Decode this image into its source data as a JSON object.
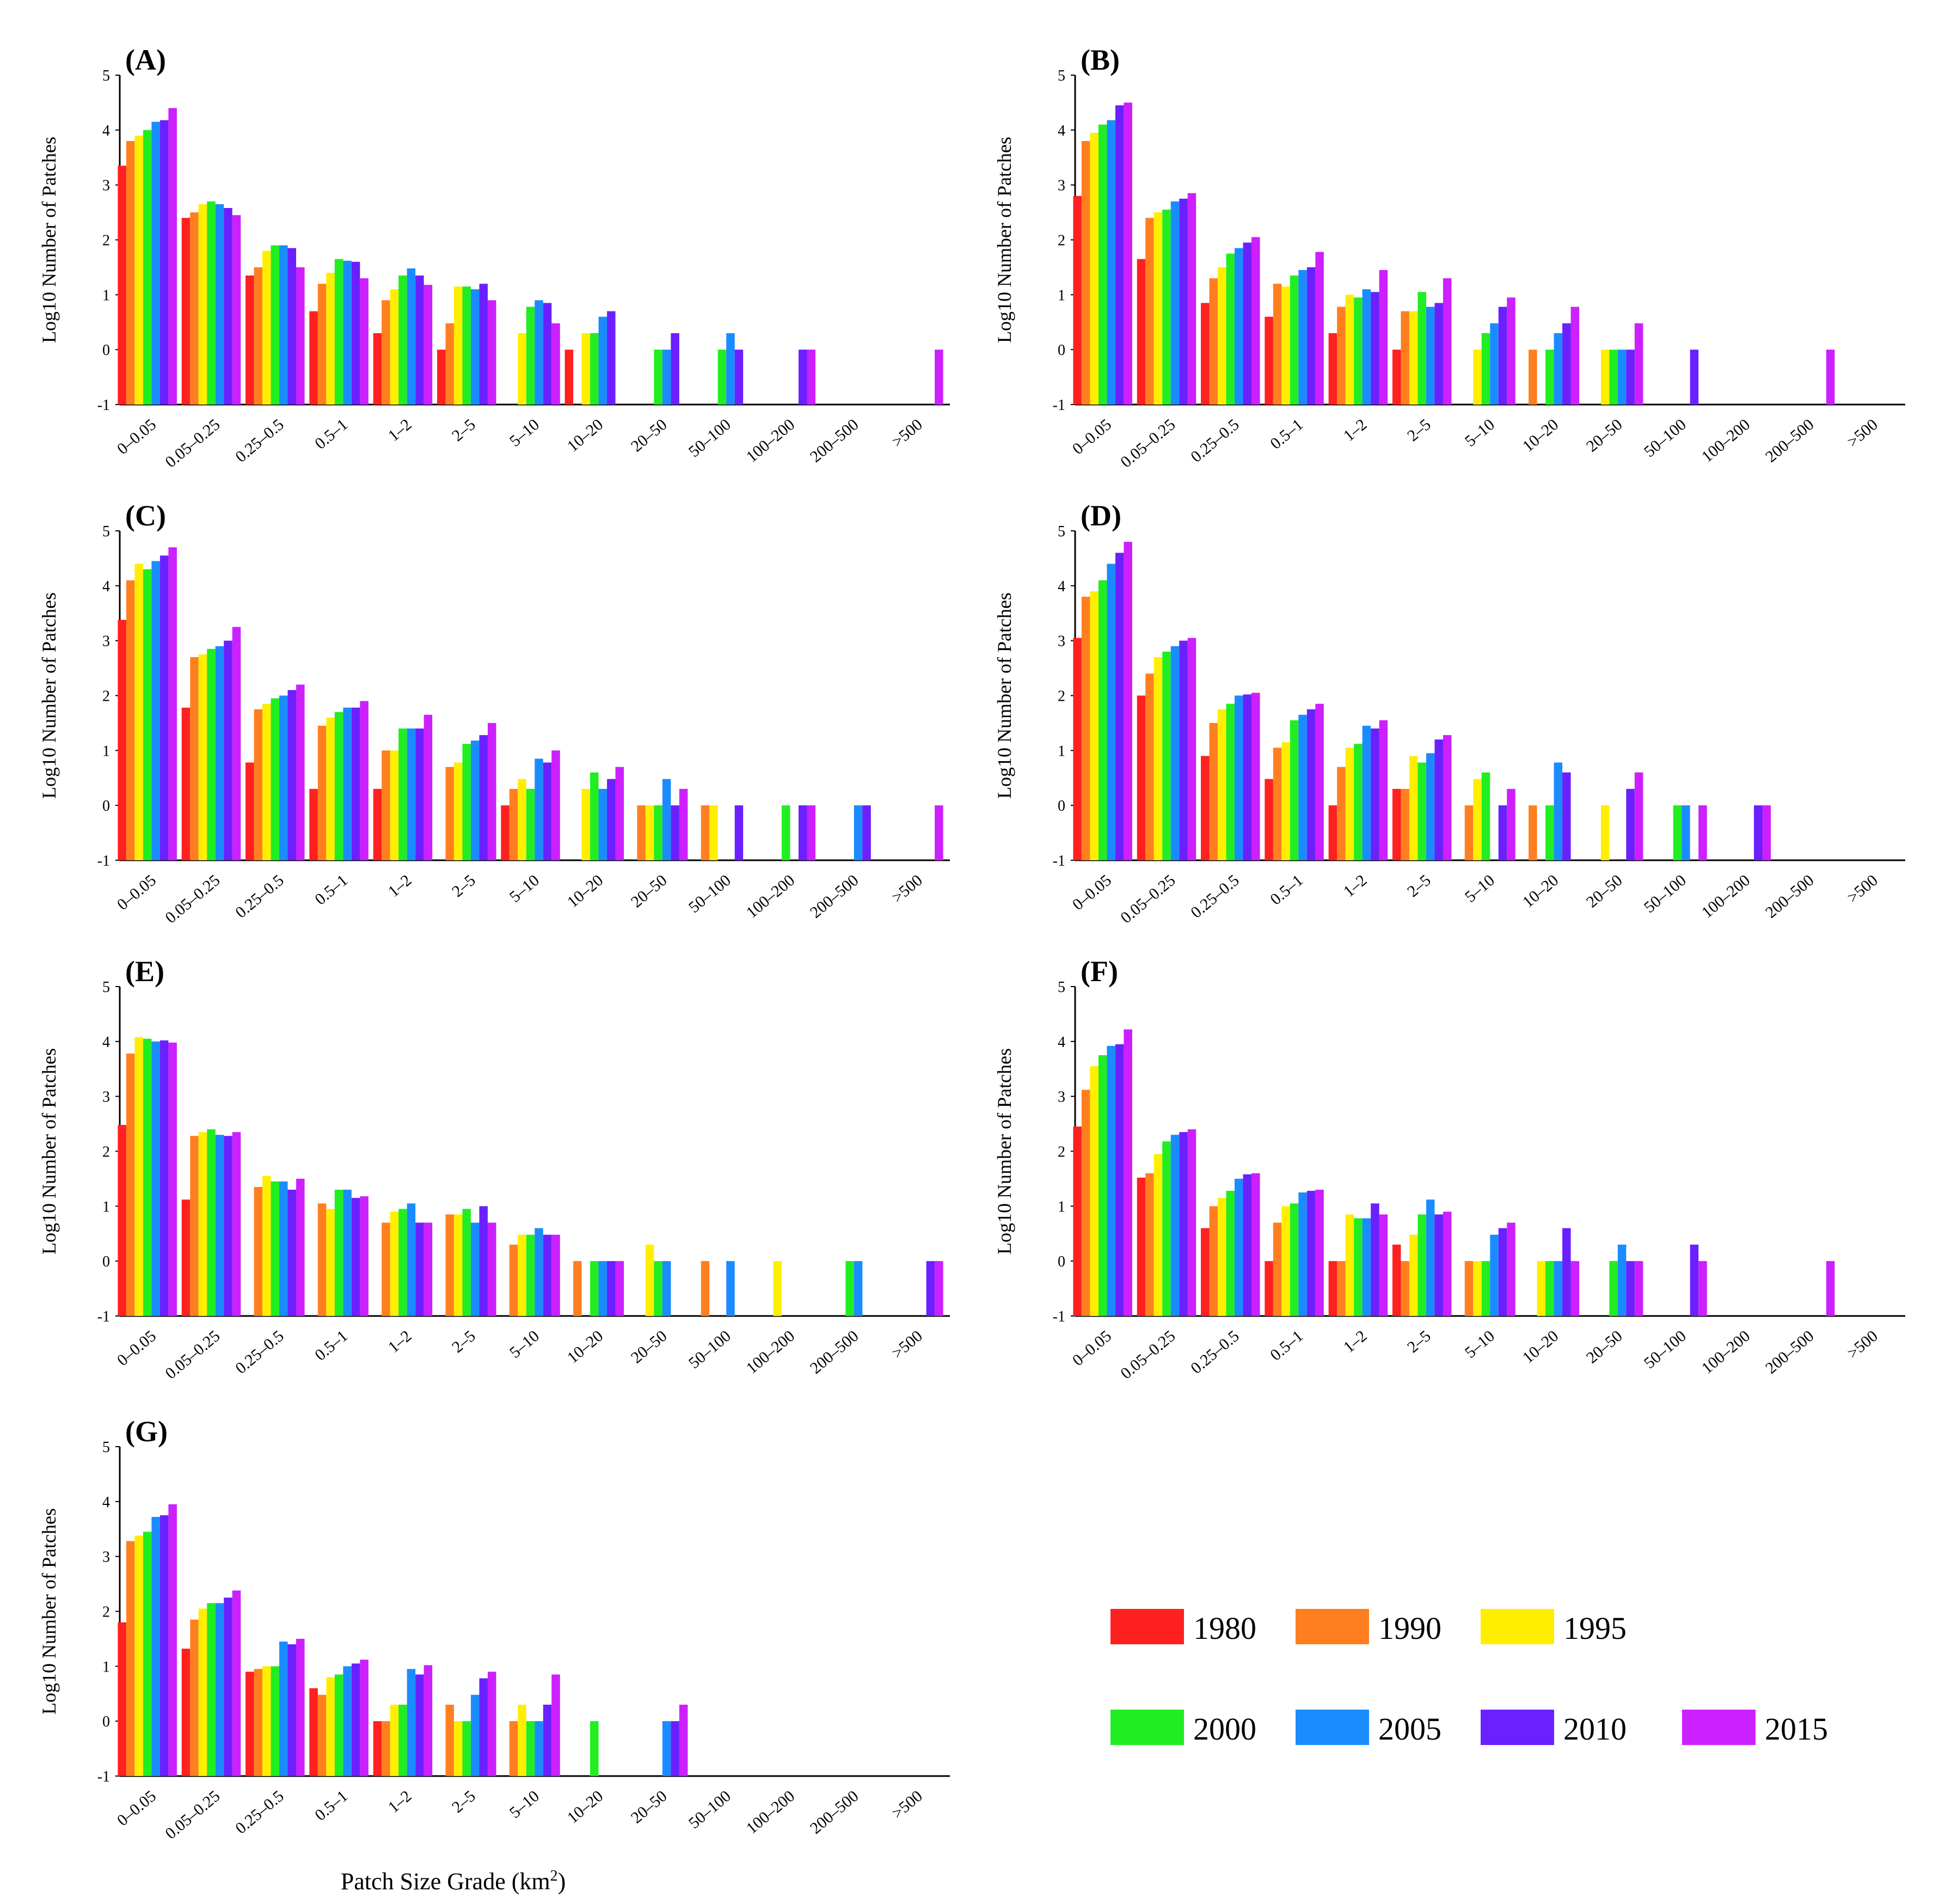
{
  "categories": [
    "0–0.05",
    "0.05–0.25",
    "0.25–0.5",
    "0.5–1",
    "1–2",
    "2–5",
    "5–10",
    "10–20",
    "20–50",
    "50–100",
    "100–200",
    "200–500",
    ">500"
  ],
  "years": [
    "1980",
    "1990",
    "1995",
    "2000",
    "2005",
    "2010",
    "2015"
  ],
  "colors": {
    "1980": "#ff2020",
    "1990": "#ff7f20",
    "1995": "#ffee00",
    "2000": "#20ee20",
    "2005": "#1a8cff",
    "2010": "#6a20ff",
    "2015": "#cc20ff"
  },
  "y_axis_label": "Log10 Number of Patches",
  "x_axis_label": "Patch Size Grade (km",
  "x_axis_label_sup": "2",
  "x_axis_label_end": ")",
  "y_ticks": [
    "5",
    "4",
    "3",
    "2",
    "1",
    "0",
    "-1"
  ],
  "chart_data": [
    {
      "type": "bar",
      "panel": "(A)",
      "ylim": [
        -1,
        5
      ],
      "ylabel": "Log10 Number of Patches",
      "categories": [
        "0–0.05",
        "0.05–0.25",
        "0.25–0.5",
        "0.5–1",
        "1–2",
        "2–5",
        "5–10",
        "10–20",
        "20–50",
        "50–100",
        "100–200",
        "200–500",
        ">500"
      ],
      "series": [
        {
          "name": "1980",
          "values": [
            3.35,
            2.4,
            1.35,
            0.7,
            0.3,
            0,
            null,
            0,
            null,
            null,
            null,
            null,
            null
          ]
        },
        {
          "name": "1990",
          "values": [
            3.8,
            2.5,
            1.5,
            1.2,
            0.9,
            0.48,
            null,
            null,
            null,
            null,
            null,
            null,
            null
          ]
        },
        {
          "name": "1995",
          "values": [
            3.9,
            2.65,
            1.8,
            1.4,
            1.1,
            1.15,
            0.3,
            0.3,
            null,
            null,
            null,
            null,
            null
          ]
        },
        {
          "name": "2000",
          "values": [
            4.0,
            2.7,
            1.9,
            1.65,
            1.35,
            1.15,
            0.78,
            0.3,
            0,
            0,
            null,
            null,
            null
          ]
        },
        {
          "name": "2005",
          "values": [
            4.15,
            2.65,
            1.9,
            1.62,
            1.48,
            1.1,
            0.9,
            0.6,
            0,
            0.3,
            null,
            null,
            null
          ]
        },
        {
          "name": "2010",
          "values": [
            4.18,
            2.58,
            1.85,
            1.6,
            1.35,
            1.2,
            0.85,
            0.7,
            0.3,
            0,
            0,
            null,
            null
          ]
        },
        {
          "name": "2015",
          "values": [
            4.4,
            2.45,
            1.5,
            1.3,
            1.18,
            0.9,
            0.48,
            null,
            null,
            null,
            0,
            null,
            0
          ]
        }
      ]
    },
    {
      "type": "bar",
      "panel": "(B)",
      "ylim": [
        -1,
        5
      ],
      "ylabel": "Log10 Number of Patches",
      "categories": [
        "0–0.05",
        "0.05–0.25",
        "0.25–0.5",
        "0.5–1",
        "1–2",
        "2–5",
        "5–10",
        "10–20",
        "20–50",
        "50–100",
        "100–200",
        "200–500",
        ">500"
      ],
      "series": [
        {
          "name": "1980",
          "values": [
            2.8,
            1.65,
            0.85,
            0.6,
            0.3,
            0,
            null,
            null,
            null,
            null,
            null,
            null,
            null
          ]
        },
        {
          "name": "1990",
          "values": [
            3.8,
            2.4,
            1.3,
            1.2,
            0.78,
            0.7,
            null,
            0,
            null,
            null,
            null,
            null,
            null
          ]
        },
        {
          "name": "1995",
          "values": [
            3.95,
            2.5,
            1.5,
            1.15,
            1.0,
            0.7,
            0,
            null,
            0,
            null,
            null,
            null,
            null
          ]
        },
        {
          "name": "2000",
          "values": [
            4.1,
            2.55,
            1.75,
            1.35,
            0.95,
            1.05,
            0.3,
            0,
            0,
            null,
            null,
            null,
            null
          ]
        },
        {
          "name": "2005",
          "values": [
            4.18,
            2.7,
            1.85,
            1.45,
            1.1,
            0.78,
            0.48,
            0.3,
            0,
            null,
            null,
            null,
            null
          ]
        },
        {
          "name": "2010",
          "values": [
            4.45,
            2.75,
            1.95,
            1.5,
            1.05,
            0.85,
            0.78,
            0.48,
            0,
            0,
            null,
            null,
            null
          ]
        },
        {
          "name": "2015",
          "values": [
            4.5,
            2.85,
            2.05,
            1.78,
            1.45,
            1.3,
            0.95,
            0.78,
            0.48,
            null,
            null,
            0,
            null
          ]
        }
      ]
    },
    {
      "type": "bar",
      "panel": "(C)",
      "ylim": [
        -1,
        5
      ],
      "ylabel": "Log10 Number of Patches",
      "categories": [
        "0–0.05",
        "0.05–0.25",
        "0.25–0.5",
        "0.5–1",
        "1–2",
        "2–5",
        "5–10",
        "10–20",
        "20–50",
        "50–100",
        "100–200",
        "200–500",
        ">500"
      ],
      "series": [
        {
          "name": "1980",
          "values": [
            3.38,
            1.78,
            0.78,
            0.3,
            0.3,
            null,
            0,
            null,
            null,
            null,
            null,
            null,
            null
          ]
        },
        {
          "name": "1990",
          "values": [
            4.1,
            2.7,
            1.75,
            1.45,
            1.0,
            0.7,
            0.3,
            null,
            0,
            0,
            null,
            null,
            null
          ]
        },
        {
          "name": "1995",
          "values": [
            4.4,
            2.75,
            1.85,
            1.6,
            1.0,
            0.78,
            0.48,
            0.3,
            0,
            0,
            null,
            null,
            null
          ]
        },
        {
          "name": "2000",
          "values": [
            4.3,
            2.85,
            1.95,
            1.7,
            1.4,
            1.12,
            0.3,
            0.6,
            0,
            null,
            0,
            null,
            null
          ]
        },
        {
          "name": "2005",
          "values": [
            4.45,
            2.9,
            2.0,
            1.78,
            1.4,
            1.18,
            0.85,
            0.3,
            0.48,
            null,
            null,
            0,
            null
          ]
        },
        {
          "name": "2010",
          "values": [
            4.55,
            3.0,
            2.1,
            1.78,
            1.4,
            1.28,
            0.78,
            0.48,
            0,
            0,
            0,
            0,
            null
          ]
        },
        {
          "name": "2015",
          "values": [
            4.7,
            3.25,
            2.2,
            1.9,
            1.65,
            1.5,
            1.0,
            0.7,
            0.3,
            null,
            0,
            null,
            0
          ]
        }
      ]
    },
    {
      "type": "bar",
      "panel": "(D)",
      "ylim": [
        -1,
        5
      ],
      "ylabel": "Log10 Number of Patches",
      "categories": [
        "0–0.05",
        "0.05–0.25",
        "0.25–0.5",
        "0.5–1",
        "1–2",
        "2–5",
        "5–10",
        "10–20",
        "20–50",
        "50–100",
        "100–200",
        "200–500",
        ">500"
      ],
      "series": [
        {
          "name": "1980",
          "values": [
            3.05,
            2.0,
            0.9,
            0.48,
            0,
            0.3,
            null,
            null,
            null,
            null,
            null,
            null,
            null
          ]
        },
        {
          "name": "1990",
          "values": [
            3.8,
            2.4,
            1.5,
            1.05,
            0.7,
            0.3,
            0,
            0,
            null,
            null,
            null,
            null,
            null
          ]
        },
        {
          "name": "1995",
          "values": [
            3.9,
            2.7,
            1.75,
            1.15,
            1.05,
            0.9,
            0.48,
            null,
            0,
            null,
            null,
            null,
            null
          ]
        },
        {
          "name": "2000",
          "values": [
            4.1,
            2.8,
            1.85,
            1.55,
            1.12,
            0.78,
            0.6,
            0,
            null,
            0,
            null,
            null,
            null
          ]
        },
        {
          "name": "2005",
          "values": [
            4.4,
            2.9,
            2.0,
            1.65,
            1.45,
            0.95,
            null,
            0.78,
            null,
            0,
            null,
            null,
            null
          ]
        },
        {
          "name": "2010",
          "values": [
            4.6,
            3.0,
            2.02,
            1.75,
            1.4,
            1.2,
            0,
            0.6,
            0.3,
            null,
            0,
            null,
            null
          ]
        },
        {
          "name": "2015",
          "values": [
            4.8,
            3.05,
            2.05,
            1.85,
            1.55,
            1.28,
            0.3,
            null,
            0.6,
            0,
            0,
            null,
            null
          ]
        }
      ]
    },
    {
      "type": "bar",
      "panel": "(E)",
      "ylim": [
        -1,
        5
      ],
      "ylabel": "Log10 Number of Patches",
      "categories": [
        "0–0.05",
        "0.05–0.25",
        "0.25–0.5",
        "0.5–1",
        "1–2",
        "2–5",
        "5–10",
        "10–20",
        "20–50",
        "50–100",
        "100–200",
        "200–500",
        ">500"
      ],
      "series": [
        {
          "name": "1980",
          "values": [
            2.48,
            1.12,
            null,
            null,
            null,
            null,
            null,
            null,
            null,
            null,
            null,
            null,
            null
          ]
        },
        {
          "name": "1990",
          "values": [
            3.78,
            2.28,
            1.35,
            1.05,
            0.7,
            0.85,
            0.3,
            0,
            null,
            0,
            null,
            null,
            null
          ]
        },
        {
          "name": "1995",
          "values": [
            4.08,
            2.35,
            1.55,
            0.95,
            0.9,
            0.85,
            0.48,
            null,
            0.3,
            null,
            0,
            null,
            null
          ]
        },
        {
          "name": "2000",
          "values": [
            4.05,
            2.4,
            1.45,
            1.3,
            0.95,
            0.95,
            0.48,
            0,
            0,
            null,
            null,
            0,
            null
          ]
        },
        {
          "name": "2005",
          "values": [
            4.0,
            2.3,
            1.45,
            1.3,
            1.05,
            0.7,
            0.6,
            0,
            0,
            0,
            null,
            0,
            null
          ]
        },
        {
          "name": "2010",
          "values": [
            4.02,
            2.28,
            1.3,
            1.15,
            0.7,
            1.0,
            0.48,
            0,
            null,
            null,
            null,
            null,
            0
          ]
        },
        {
          "name": "2015",
          "values": [
            3.98,
            2.35,
            1.5,
            1.18,
            0.7,
            0.7,
            0.48,
            0,
            null,
            null,
            null,
            null,
            0
          ]
        }
      ]
    },
    {
      "type": "bar",
      "panel": "(F)",
      "ylim": [
        -1,
        5
      ],
      "ylabel": "Log10 Number of Patches",
      "categories": [
        "0–0.05",
        "0.05–0.25",
        "0.25–0.5",
        "0.5–1",
        "1–2",
        "2–5",
        "5–10",
        "10–20",
        "20–50",
        "50–100",
        "100–200",
        "200–500",
        ">500"
      ],
      "series": [
        {
          "name": "1980",
          "values": [
            2.45,
            1.52,
            0.6,
            0,
            0,
            0.3,
            null,
            null,
            null,
            null,
            null,
            null,
            null
          ]
        },
        {
          "name": "1990",
          "values": [
            3.12,
            1.6,
            1.0,
            0.7,
            0,
            0,
            0,
            null,
            null,
            null,
            null,
            null,
            null
          ]
        },
        {
          "name": "1995",
          "values": [
            3.55,
            1.95,
            1.15,
            1.0,
            0.85,
            0.48,
            0,
            0,
            null,
            null,
            null,
            null,
            null
          ]
        },
        {
          "name": "2000",
          "values": [
            3.75,
            2.18,
            1.28,
            1.05,
            0.78,
            0.85,
            0,
            0,
            0,
            null,
            null,
            null,
            null
          ]
        },
        {
          "name": "2005",
          "values": [
            3.92,
            2.3,
            1.5,
            1.25,
            0.78,
            1.12,
            0.48,
            0,
            0.3,
            null,
            null,
            null,
            null
          ]
        },
        {
          "name": "2010",
          "values": [
            3.95,
            2.35,
            1.58,
            1.28,
            1.05,
            0.85,
            0.6,
            0.6,
            0,
            0.3,
            null,
            null,
            null
          ]
        },
        {
          "name": "2015",
          "values": [
            4.22,
            2.4,
            1.6,
            1.3,
            0.85,
            0.9,
            0.7,
            0,
            0,
            0,
            null,
            0,
            null
          ]
        }
      ]
    },
    {
      "type": "bar",
      "panel": "(G)",
      "ylim": [
        -1,
        5
      ],
      "ylabel": "Log10 Number of Patches",
      "xlabel": "Patch Size Grade (km²)",
      "categories": [
        "0–0.05",
        "0.05–0.25",
        "0.25–0.5",
        "0.5–1",
        "1–2",
        "2–5",
        "5–10",
        "10–20",
        "20–50",
        "50–100",
        "100–200",
        "200–500",
        ">500"
      ],
      "series": [
        {
          "name": "1980",
          "values": [
            1.8,
            1.32,
            0.9,
            0.6,
            0,
            null,
            null,
            null,
            null,
            null,
            null,
            null,
            null
          ]
        },
        {
          "name": "1990",
          "values": [
            3.28,
            1.85,
            0.95,
            0.48,
            0,
            0.3,
            0,
            null,
            null,
            null,
            null,
            null,
            null
          ]
        },
        {
          "name": "1995",
          "values": [
            3.38,
            2.05,
            1.0,
            0.8,
            0.3,
            0,
            0.3,
            null,
            null,
            null,
            null,
            null,
            null
          ]
        },
        {
          "name": "2000",
          "values": [
            3.45,
            2.15,
            1.0,
            0.85,
            0.3,
            0,
            0,
            0,
            null,
            null,
            null,
            null,
            null
          ]
        },
        {
          "name": "2005",
          "values": [
            3.72,
            2.15,
            1.45,
            1.0,
            0.95,
            0.48,
            0,
            null,
            0,
            null,
            null,
            null,
            null
          ]
        },
        {
          "name": "2010",
          "values": [
            3.75,
            2.25,
            1.4,
            1.05,
            0.85,
            0.78,
            0.3,
            null,
            0,
            null,
            null,
            null,
            null
          ]
        },
        {
          "name": "2015",
          "values": [
            3.95,
            2.38,
            1.5,
            1.12,
            1.02,
            0.9,
            0.85,
            null,
            0.3,
            null,
            null,
            null,
            null
          ]
        }
      ]
    }
  ]
}
